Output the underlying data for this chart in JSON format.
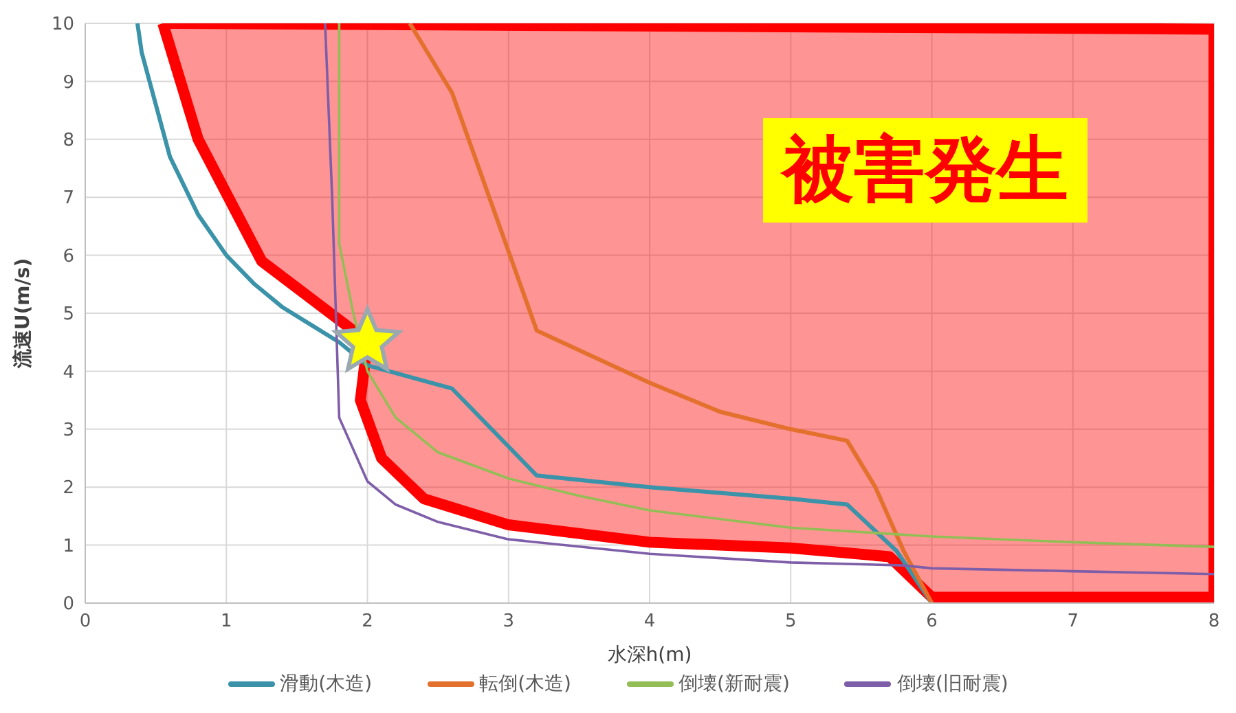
{
  "chart_data": {
    "type": "line",
    "xlabel": "水深h(m)",
    "ylabel": "流速U(m/s)",
    "xlim": [
      0,
      8
    ],
    "ylim": [
      0,
      10
    ],
    "xticks": [
      0,
      1,
      2,
      3,
      4,
      5,
      6,
      7,
      8
    ],
    "yticks": [
      0,
      1,
      2,
      3,
      4,
      5,
      6,
      7,
      8,
      9,
      10
    ],
    "grid": true,
    "legend": "bottom",
    "marker": "none",
    "line_style": "solid",
    "annotations": [
      "被害発生"
    ],
    "series": [
      {
        "type": "area",
        "color": "#ff0000",
        "x": [
          0.55,
          0.8,
          1.25,
          1.9,
          2.0,
          1.95,
          2.1,
          2.4,
          3,
          4,
          5,
          5.7,
          6,
          8,
          8,
          0.55
        ],
        "values": [
          10,
          8,
          5.9,
          4.7,
          4.5,
          3.5,
          2.5,
          1.8,
          1.35,
          1.05,
          0.95,
          0.8,
          0.1,
          0.1,
          9.9,
          10
        ]
      },
      {
        "name": "滑動(木造)",
        "color": "#3b93a9",
        "x": [
          0.37,
          0.4,
          0.6,
          0.8,
          1.0,
          1.2,
          1.4,
          1.6,
          1.8,
          2.0,
          2.6,
          3.2,
          4,
          5,
          5.4,
          5.75,
          6.0
        ],
        "values": [
          10,
          9.5,
          7.7,
          6.7,
          6.0,
          5.5,
          5.1,
          4.8,
          4.5,
          4.1,
          3.7,
          2.2,
          2.0,
          1.8,
          1.7,
          0.9,
          0
        ]
      },
      {
        "name": "転倒(木造)",
        "color": "#e3702c",
        "x": [
          2.3,
          2.6,
          3.2,
          4,
          4.5,
          5,
          5.4,
          5.6,
          5.8,
          6.0
        ],
        "values": [
          10,
          8.8,
          4.7,
          3.8,
          3.3,
          3.0,
          2.8,
          2.0,
          0.9,
          0
        ]
      },
      {
        "name": "倒壊(新耐震)",
        "color": "#93bd55",
        "x": [
          1.8,
          1.8,
          1.9,
          2.0,
          2.2,
          2.5,
          3,
          3.5,
          4,
          5,
          6,
          7,
          8
        ],
        "values": [
          10,
          6.2,
          5.0,
          4.0,
          3.2,
          2.6,
          2.15,
          1.85,
          1.6,
          1.3,
          1.15,
          1.05,
          0.97
        ]
      },
      {
        "name": "倒壊(旧耐震)",
        "color": "#7e5ea8",
        "x": [
          1.7,
          1.75,
          1.8,
          2.0,
          2.2,
          2.5,
          3,
          4,
          5,
          5.8,
          6,
          7,
          8
        ],
        "values": [
          10,
          7,
          3.2,
          2.1,
          1.7,
          1.4,
          1.1,
          0.85,
          0.7,
          0.65,
          0.6,
          0.55,
          0.5
        ]
      },
      {
        "type": "scatter",
        "color": "#ffff00",
        "marker": "star",
        "x": [
          2
        ],
        "values": [
          4.5
        ]
      }
    ]
  }
}
